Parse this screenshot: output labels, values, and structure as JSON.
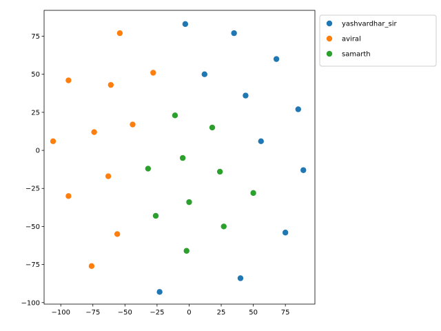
{
  "chart_data": {
    "type": "scatter",
    "title": "",
    "xlabel": "",
    "ylabel": "",
    "xlim": [
      -113,
      98
    ],
    "ylim": [
      -101,
      92
    ],
    "xticks": [
      -100,
      -75,
      -50,
      -25,
      0,
      25,
      50,
      75
    ],
    "yticks": [
      -100,
      -75,
      -50,
      -25,
      0,
      25,
      50,
      75
    ],
    "xtick_labels": [
      "−100",
      "−75",
      "−50",
      "−25",
      "0",
      "25",
      "50",
      "75"
    ],
    "ytick_labels": [
      "−100",
      "−75",
      "−50",
      "−25",
      "0",
      "25",
      "50",
      "75"
    ],
    "grid": false,
    "legend_position": "outside-top-right",
    "series": [
      {
        "name": "yashvardhar_sir",
        "color": "#1f77b4",
        "points": [
          [
            -3,
            83
          ],
          [
            35,
            77
          ],
          [
            68,
            60
          ],
          [
            12,
            50
          ],
          [
            44,
            36
          ],
          [
            85,
            27
          ],
          [
            56,
            6
          ],
          [
            89,
            -13
          ],
          [
            75,
            -54
          ],
          [
            40,
            -84
          ],
          [
            -23,
            -93
          ]
        ]
      },
      {
        "name": "aviral",
        "color": "#ff7f0e",
        "points": [
          [
            -54,
            77
          ],
          [
            -28,
            51
          ],
          [
            -94,
            46
          ],
          [
            -61,
            43
          ],
          [
            -44,
            17
          ],
          [
            -74,
            12
          ],
          [
            -106,
            6
          ],
          [
            -63,
            -17
          ],
          [
            -94,
            -30
          ],
          [
            -56,
            -55
          ],
          [
            -76,
            -76
          ]
        ]
      },
      {
        "name": "samarth",
        "color": "#2ca02c",
        "points": [
          [
            -11,
            23
          ],
          [
            18,
            15
          ],
          [
            -5,
            -5
          ],
          [
            -32,
            -12
          ],
          [
            24,
            -14
          ],
          [
            50,
            -28
          ],
          [
            0,
            -34
          ],
          [
            -26,
            -43
          ],
          [
            27,
            -50
          ],
          [
            -2,
            -66
          ]
        ]
      }
    ]
  }
}
